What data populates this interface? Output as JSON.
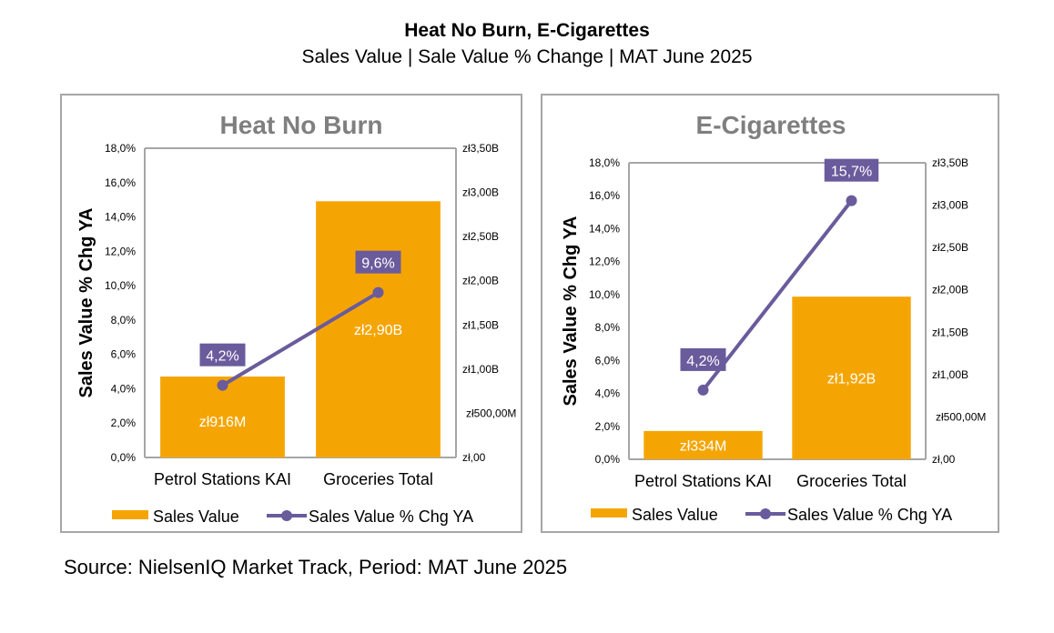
{
  "page": {
    "title": "Heat No Burn, E-Cigarettes",
    "subtitle": "Sales Value | Sale Value % Change | MAT June 2025",
    "source": "Source: NielsenIQ Market Track, Period: MAT June 2025"
  },
  "colors": {
    "bar": "#f5a503",
    "line": "#6a5b9c",
    "axis": "#a6a6a6",
    "panel_title": "#7f7f7f",
    "value_label": "#ffffff"
  },
  "chart_data": [
    {
      "type": "bar",
      "title": "Heat No Burn",
      "categories": [
        "Petrol Stations KAI",
        "Groceries Total"
      ],
      "series": [
        {
          "name": "Sales Value",
          "kind": "bar",
          "axis": "right",
          "values": [
            0.916,
            2.9
          ],
          "labels": [
            "zł916M",
            "zł2,90B"
          ]
        },
        {
          "name": "Sales Value % Chg YA",
          "kind": "line",
          "axis": "left",
          "values": [
            4.2,
            9.6
          ],
          "labels": [
            "4,2%",
            "9,6%"
          ]
        }
      ],
      "ylabel": "Sales Value % Chg YA",
      "ylim": [
        0,
        18
      ],
      "y_ticks": [
        "0,0%",
        "2,0%",
        "4,0%",
        "6,0%",
        "8,0%",
        "10,0%",
        "12,0%",
        "14,0%",
        "16,0%",
        "18,0%"
      ],
      "y2lim": [
        0,
        3.5
      ],
      "y2_ticks": [
        "zł,00",
        "zł500,00M",
        "zł1,00B",
        "zł1,50B",
        "zł2,00B",
        "zł2,50B",
        "zł3,00B",
        "zł3,50B"
      ],
      "legend": {
        "position": "bottom",
        "items": [
          "Sales Value",
          "Sales Value % Chg YA"
        ]
      }
    },
    {
      "type": "bar",
      "title": "E-Cigarettes",
      "categories": [
        "Petrol Stations KAI",
        "Groceries Total"
      ],
      "series": [
        {
          "name": "Sales Value",
          "kind": "bar",
          "axis": "right",
          "values": [
            0.334,
            1.92
          ],
          "labels": [
            "zł334M",
            "zł1,92B"
          ]
        },
        {
          "name": "Sales Value % Chg YA",
          "kind": "line",
          "axis": "left",
          "values": [
            4.2,
            15.7
          ],
          "labels": [
            "4,2%",
            "15,7%"
          ]
        }
      ],
      "ylabel": "Sales Value % Chg YA",
      "ylim": [
        0,
        18
      ],
      "y_ticks": [
        "0,0%",
        "2,0%",
        "4,0%",
        "6,0%",
        "8,0%",
        "10,0%",
        "12,0%",
        "14,0%",
        "16,0%",
        "18,0%"
      ],
      "y2lim": [
        0,
        3.5
      ],
      "y2_ticks": [
        "zł,00",
        "zł500,00M",
        "zł1,00B",
        "zł1,50B",
        "zł2,00B",
        "zł2,50B",
        "zł3,00B",
        "zł3,50B"
      ],
      "legend": {
        "position": "bottom",
        "items": [
          "Sales Value",
          "Sales Value % Chg YA"
        ]
      }
    }
  ]
}
